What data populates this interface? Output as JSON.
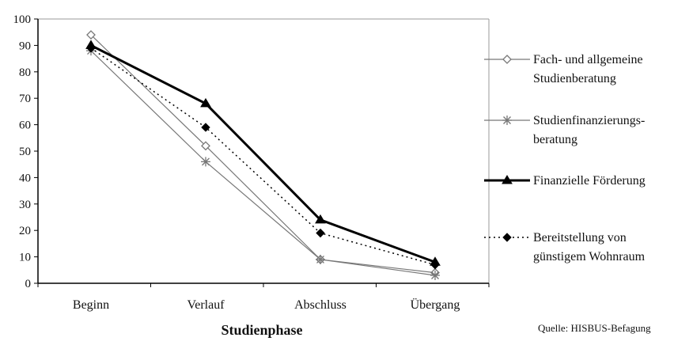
{
  "chart_data": {
    "type": "line",
    "title": "",
    "xlabel": "Studienphase",
    "ylabel": "",
    "categories": [
      "Beginn",
      "Verlauf",
      "Abschluss",
      "Übergang"
    ],
    "ylim": [
      0,
      100
    ],
    "yticks": [
      0,
      10,
      20,
      30,
      40,
      50,
      60,
      70,
      80,
      90,
      100
    ],
    "grid": false,
    "legend_position": "right",
    "series": [
      {
        "name_lines": [
          "Fach- und allgemeine",
          "Studienberatung"
        ],
        "values": [
          94,
          52,
          9,
          4
        ],
        "color": "#777777",
        "line": "solid",
        "marker": "open-diamond"
      },
      {
        "name_lines": [
          "Studienfinanzierungs-",
          "beratung"
        ],
        "values": [
          88,
          46,
          9,
          3
        ],
        "color": "#777777",
        "line": "solid",
        "marker": "asterisk"
      },
      {
        "name_lines": [
          "Finanzielle Förderung"
        ],
        "values": [
          90,
          68,
          24,
          8
        ],
        "color": "#000000",
        "line": "bold",
        "marker": "filled-triangle"
      },
      {
        "name_lines": [
          "Bereitstellung von",
          "günstigem Wohnraum"
        ],
        "values": [
          89,
          59,
          19,
          7
        ],
        "color": "#000000",
        "line": "dotted",
        "marker": "filled-diamond"
      }
    ],
    "source_note": "Quelle: HISBUS-Befagung"
  }
}
